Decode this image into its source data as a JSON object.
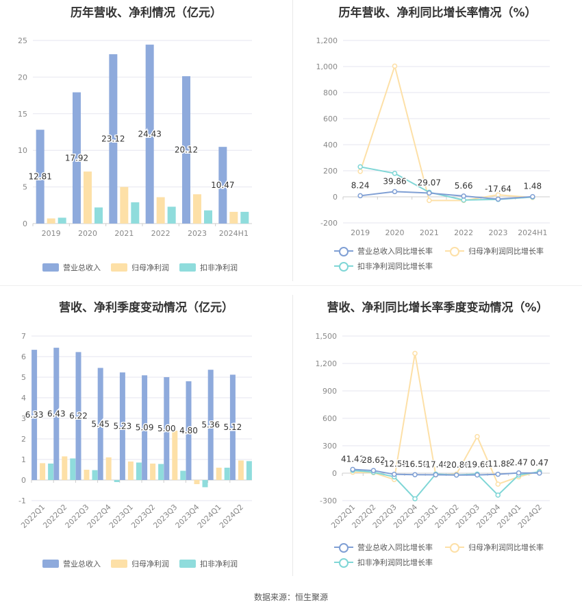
{
  "source": "数据来源：恒生聚源",
  "colors": {
    "revenue": "#8eaadc",
    "net": "#fde0a7",
    "deducted": "#8fdcdc",
    "revenue_line": "#7f9fd4",
    "net_line": "#fde0a7",
    "deducted_line": "#7fd6d6"
  },
  "panels": [
    {
      "title": "历年营收、净利情况（亿元）",
      "legend": [
        "营业总收入",
        "归母净利润",
        "扣非净利润"
      ]
    },
    {
      "title": "历年营收、净利同比增长率情况（%）",
      "legend": [
        "营业总收入同比增长率",
        "归母净利润同比增长率",
        "扣非净利润同比增长率"
      ]
    },
    {
      "title": "营收、净利季度变动情况（亿元）",
      "legend": [
        "营业总收入",
        "归母净利润",
        "扣非净利润"
      ]
    },
    {
      "title": "营收、净利同比增长率季度变动情况（%）",
      "legend": [
        "营业总收入同比增长率",
        "归母净利润同比增长率",
        "扣非净利润同比增长率"
      ]
    }
  ],
  "chart_data": [
    {
      "type": "bar",
      "title": "历年营收、净利情况（亿元）",
      "categories": [
        "2019",
        "2020",
        "2021",
        "2022",
        "2023",
        "2024H1"
      ],
      "ylim": [
        0,
        25
      ],
      "yticks": [
        "0",
        "5",
        "10",
        "15",
        "20",
        "25"
      ],
      "series": [
        {
          "name": "营业总收入",
          "values": [
            12.81,
            17.92,
            23.12,
            24.43,
            20.12,
            10.47
          ],
          "labels": [
            "12.81",
            "17.92",
            "23.12",
            "24.43",
            "20.12",
            "10.47"
          ]
        },
        {
          "name": "归母净利润",
          "values": [
            0.7,
            7.1,
            5.0,
            3.6,
            4.0,
            1.6
          ]
        },
        {
          "name": "扣非净利润",
          "values": [
            0.8,
            2.2,
            2.9,
            2.3,
            1.8,
            1.6
          ]
        }
      ]
    },
    {
      "type": "line",
      "title": "历年营收、净利同比增长率情况（%）",
      "categories": [
        "2019",
        "2020",
        "2021",
        "2022",
        "2023",
        "2024H1"
      ],
      "ylim": [
        -200,
        1200
      ],
      "yticks": [
        "-200",
        "0",
        "200",
        "400",
        "600",
        "800",
        "1,000",
        "1,200"
      ],
      "series": [
        {
          "name": "营业总收入同比增长率",
          "values": [
            8.24,
            39.86,
            29.07,
            5.66,
            -17.64,
            1.48
          ],
          "labels": [
            "8.24",
            "39.86",
            "29.07",
            "5.66",
            "-17.64",
            "1.48"
          ]
        },
        {
          "name": "归母净利润同比增长率",
          "values": [
            195,
            1003,
            -28,
            -28,
            15,
            -5
          ]
        },
        {
          "name": "扣非净利润同比增长率",
          "values": [
            230,
            180,
            35,
            -25,
            -20,
            -2
          ]
        }
      ]
    },
    {
      "type": "bar",
      "title": "营收、净利季度变动情况（亿元）",
      "categories": [
        "2022Q1",
        "2022Q2",
        "2022Q3",
        "2022Q4",
        "2023Q1",
        "2023Q2",
        "2023Q3",
        "2023Q4",
        "2024Q1",
        "2024Q2"
      ],
      "ylim": [
        -1,
        7
      ],
      "yticks": [
        "-1",
        "0",
        "1",
        "2",
        "3",
        "4",
        "5",
        "6",
        "7"
      ],
      "series": [
        {
          "name": "营业总收入",
          "values": [
            6.33,
            6.43,
            6.22,
            5.45,
            5.23,
            5.09,
            5.0,
            4.8,
            5.36,
            5.12
          ],
          "labels": [
            "6.33",
            "6.43",
            "6.22",
            "5.45",
            "5.23",
            "5.09",
            "5.00",
            "4.80",
            "5.36",
            "5.12"
          ]
        },
        {
          "name": "归母净利润",
          "values": [
            0.82,
            1.15,
            0.5,
            1.1,
            0.9,
            0.8,
            2.4,
            -0.2,
            0.6,
            0.95
          ]
        },
        {
          "name": "扣非净利润",
          "values": [
            0.8,
            1.05,
            0.48,
            -0.1,
            0.85,
            0.78,
            0.45,
            -0.35,
            0.6,
            0.92
          ]
        }
      ]
    },
    {
      "type": "line",
      "title": "营收、净利同比增长率季度变动情况（%）",
      "categories": [
        "2022Q1",
        "2022Q2",
        "2022Q3",
        "2022Q4",
        "2023Q1",
        "2023Q2",
        "2023Q3",
        "2023Q4",
        "2024Q1",
        "2024Q2"
      ],
      "ylim": [
        -300,
        1500
      ],
      "yticks": [
        "-300",
        "0",
        "300",
        "600",
        "900",
        "1,200",
        "1,500"
      ],
      "series": [
        {
          "name": "营业总收入同比增长率",
          "values": [
            41.41,
            28.62,
            -12.55,
            -16.59,
            -17.4,
            -20.86,
            -19.6,
            -11.88,
            2.47,
            0.47
          ],
          "labels": [
            "41.41",
            "28.62",
            "-12.55",
            "-16.59",
            "-17.40",
            "-20.86",
            "-19.60",
            "-11.88",
            "2.47",
            "0.47"
          ]
        },
        {
          "name": "归母净利润同比增长率",
          "values": [
            10,
            5,
            -70,
            1310,
            -20,
            -10,
            400,
            -120,
            -40,
            20
          ]
        },
        {
          "name": "扣非净利润同比增长率",
          "values": [
            30,
            10,
            -40,
            -280,
            -10,
            -20,
            -10,
            -240,
            -20,
            15
          ]
        }
      ]
    }
  ]
}
